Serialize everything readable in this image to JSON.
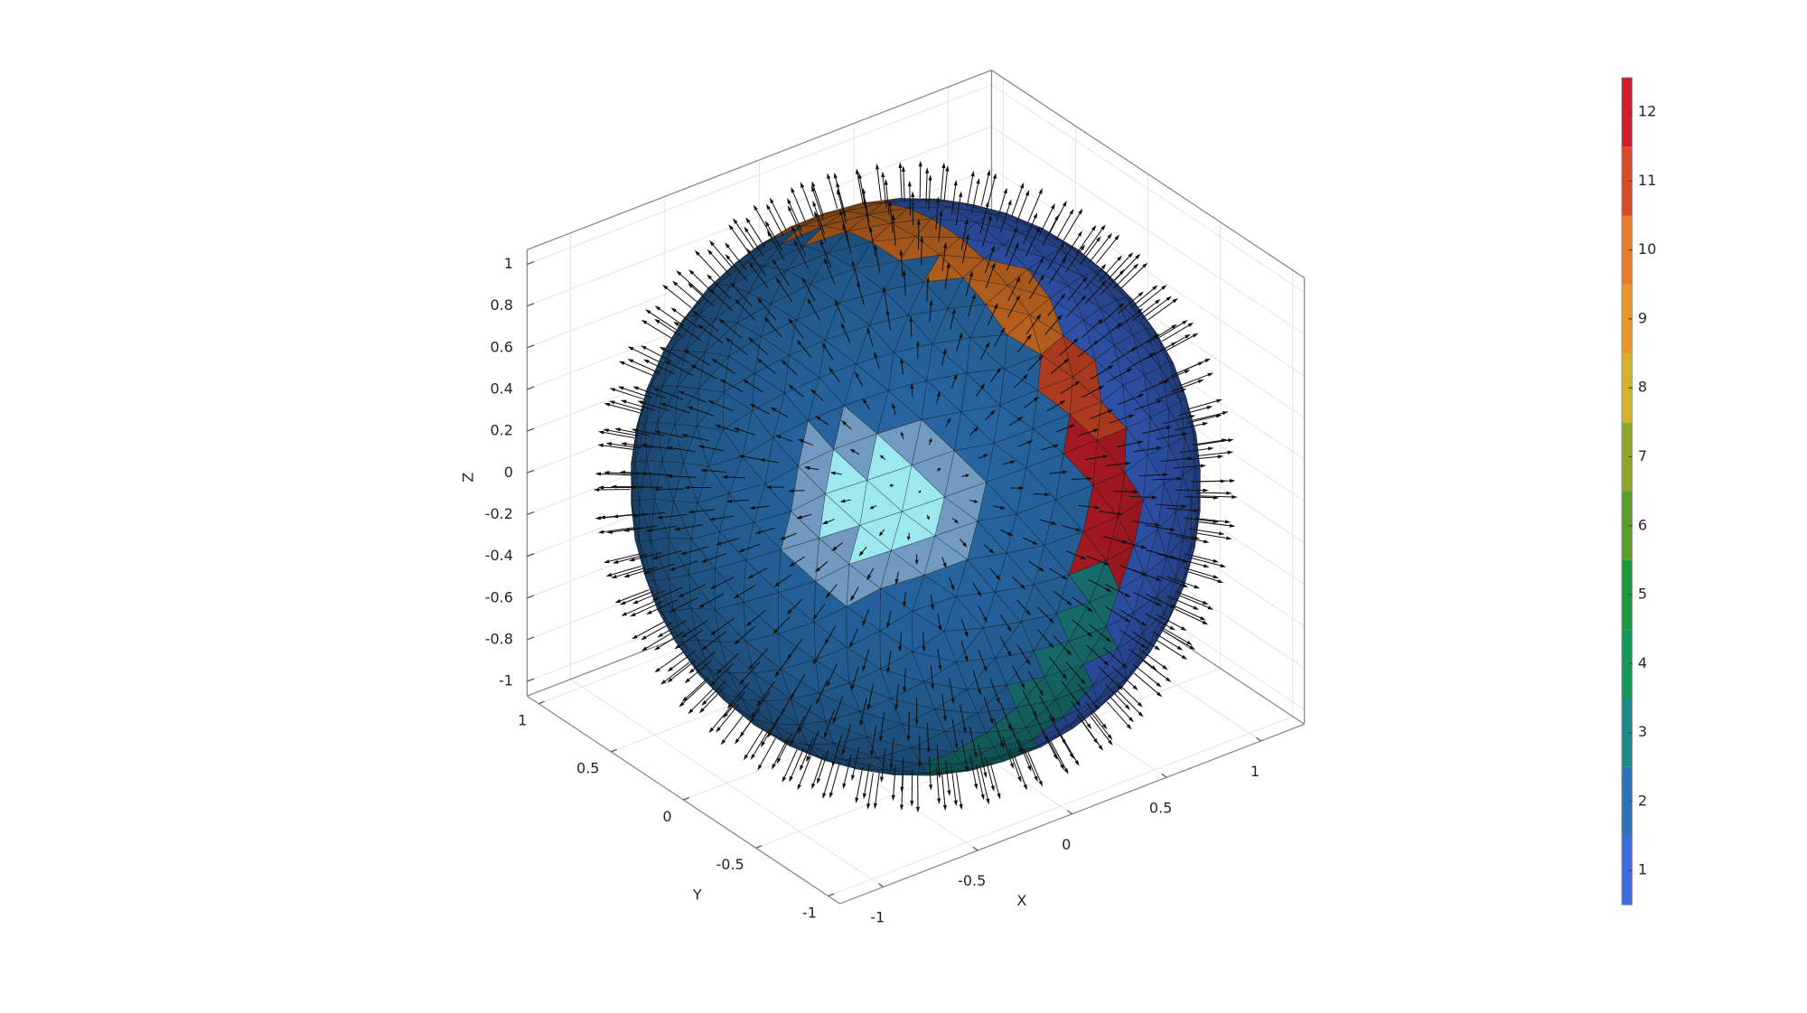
{
  "chart_data": {
    "type": "mesh3d",
    "xlabel": "X",
    "ylabel": "Y",
    "zlabel": "Z",
    "xlim": [
      -1.23,
      1.23
    ],
    "ylim": [
      -1.08,
      1.08
    ],
    "zlim": [
      -1.07,
      1.07
    ],
    "xticks": [
      -1,
      -0.5,
      0,
      0.5,
      1
    ],
    "yticks": [
      -1,
      -0.5,
      0,
      0.5,
      1
    ],
    "zticks": [
      -1,
      -0.8,
      -0.6,
      -0.4,
      -0.2,
      0,
      0.2,
      0.4,
      0.6,
      0.8,
      1
    ],
    "grid": true,
    "colorbar": {
      "clim": [
        0.5,
        12.5
      ],
      "ticks": [
        1,
        2,
        3,
        4,
        5,
        6,
        7,
        8,
        9,
        10,
        11,
        12
      ],
      "colors": [
        "#3d6de0",
        "#2c74b8",
        "#1e8a8a",
        "#159a5a",
        "#1a9a3a",
        "#5a9e2e",
        "#8fa62a",
        "#d4b22a",
        "#e8962a",
        "#e87a28",
        "#d94a28",
        "#cc1f2a"
      ]
    },
    "regions": [
      {
        "value": 2
      },
      {
        "value": 10
      },
      {
        "value": 11
      },
      {
        "value": 12
      },
      {
        "value": 3
      },
      {
        "value": 1
      }
    ]
  }
}
